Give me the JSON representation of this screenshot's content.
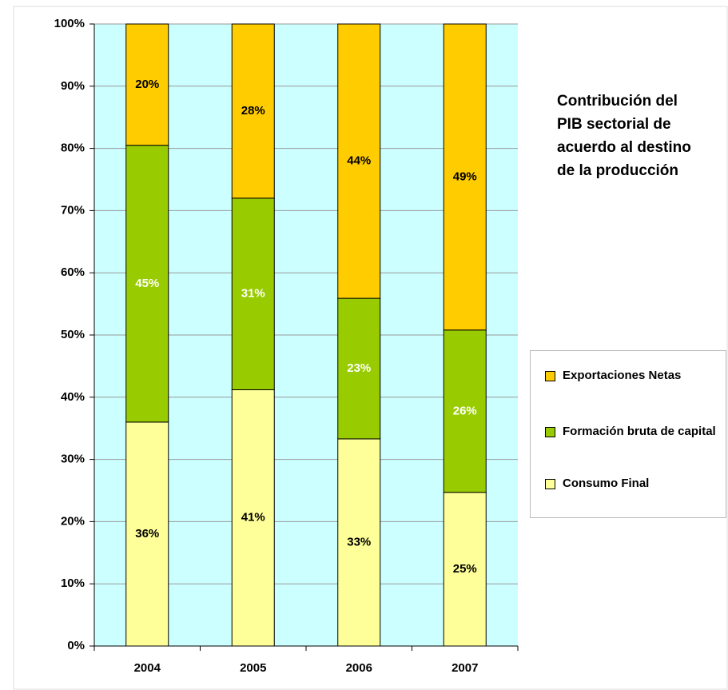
{
  "chart_data": {
    "type": "stacked_bar",
    "title": "Contribución del PIB sectorial de acuerdo al destino de la producción",
    "categories": [
      "2004",
      "2005",
      "2006",
      "2007"
    ],
    "series": [
      {
        "name": "Consumo Final",
        "color": "#ffff99",
        "label_color": "#000000",
        "values": [
          36,
          41.2,
          33.3,
          24.7
        ],
        "value_labels": [
          "36%",
          "41%",
          "33%",
          "25%"
        ]
      },
      {
        "name": "Formación bruta de capital",
        "color": "#99cc00",
        "label_color": "#ffffff",
        "values": [
          44.5,
          30.8,
          22.6,
          26.1
        ],
        "value_labels": [
          "45%",
          "31%",
          "23%",
          "26%"
        ]
      },
      {
        "name": "Exportaciones Netas",
        "color": "#ffcc00",
        "label_color": "#000000",
        "values": [
          19.5,
          28,
          44.1,
          49.2
        ],
        "value_labels": [
          "20%",
          "28%",
          "44%",
          "49%"
        ]
      }
    ],
    "ylim": [
      0,
      100
    ],
    "yticks": [
      {
        "value": 0,
        "label": "0%"
      },
      {
        "value": 10,
        "label": "10%"
      },
      {
        "value": 20,
        "label": "20%"
      },
      {
        "value": 30,
        "label": "30%"
      },
      {
        "value": 40,
        "label": "40%"
      },
      {
        "value": 50,
        "label": "50%"
      },
      {
        "value": 60,
        "label": "60%"
      },
      {
        "value": 70,
        "label": "70%"
      },
      {
        "value": 80,
        "label": "80%"
      },
      {
        "value": 90,
        "label": "90%"
      },
      {
        "value": 100,
        "label": "100%"
      }
    ],
    "grid": true,
    "plot_background": "#ccffff",
    "legend": "right"
  }
}
